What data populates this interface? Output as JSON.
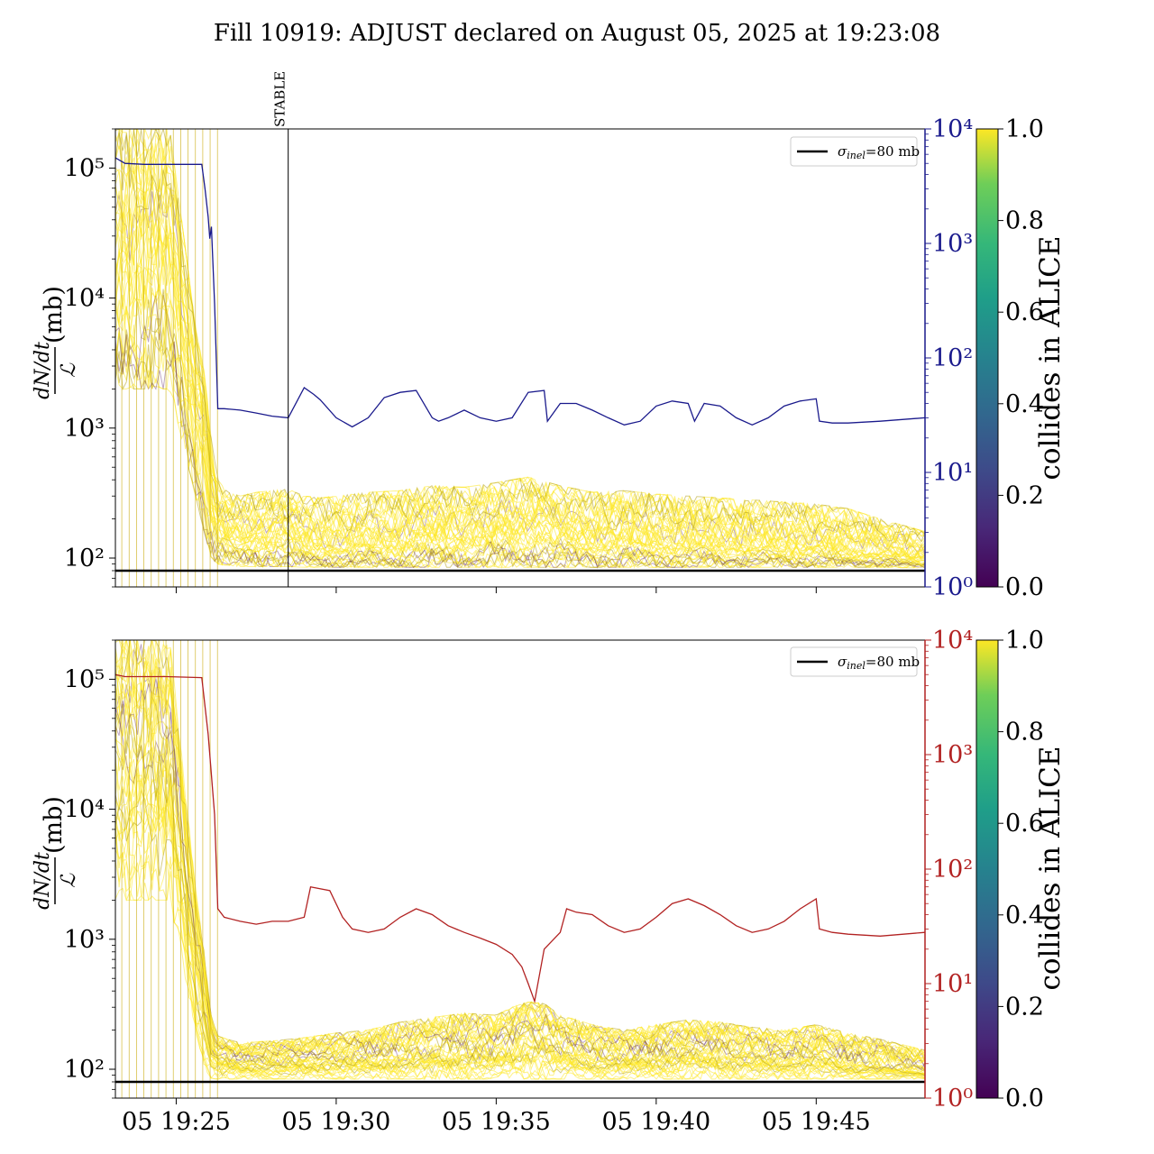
{
  "figure": {
    "title": "Fill 10919: ADJUST declared on August 05, 2025 at 19:23:08",
    "ylabel_left": "dN/dt / ℒ (mb)",
    "ylabel_left_numerator": "dN/dt",
    "ylabel_left_denominator": "ℒ",
    "ylabel_left_unit": "(mb)",
    "colorbar_label": "collides in ALICE",
    "legend_label": "σinel=80 mb",
    "legend_sigma": "σ",
    "legend_sub": "inel",
    "legend_rest": "=80 mb",
    "annotation_stable": "STABLE"
  },
  "colors": {
    "top_right_axis": "#1a1a8c",
    "bottom_right_axis": "#b22222",
    "bundle_yellow": "#fde725",
    "bundle_olive": "#b5a31e",
    "bundle_purple": "#440154",
    "reference_line": "#000000"
  },
  "chart_data": [
    {
      "type": "line",
      "panel": "top",
      "x_ticks": [
        "05 19:25",
        "05 19:30",
        "05 19:35",
        "05 19:40",
        "05 19:45"
      ],
      "x_tick_minutes": [
        25,
        30,
        35,
        40,
        45
      ],
      "x_range_minutes": [
        23.1,
        48.4
      ],
      "y_left": {
        "scale": "log",
        "range": [
          60,
          200000
        ],
        "ticks": [
          100,
          1000,
          10000,
          100000
        ],
        "tick_labels": [
          "10²",
          "10³",
          "10⁴",
          "10⁵"
        ]
      },
      "y_right": {
        "scale": "log",
        "range": [
          1,
          10000
        ],
        "ticks": [
          1,
          10,
          100,
          1000,
          10000
        ],
        "tick_labels": [
          "10⁰",
          "10¹",
          "10²",
          "10³",
          "10⁴"
        ]
      },
      "reference_line_mb": 80,
      "stable_marker_minute": 28.5,
      "bundle_envelope": {
        "minutes": [
          23.1,
          24.0,
          24.8,
          25.6,
          25.9,
          26.1,
          26.3,
          26.6,
          27.0,
          27.5,
          28.0,
          28.5,
          29.0,
          29.5,
          30.0,
          31.0,
          32.0,
          33.0,
          34.0,
          35.0,
          36.0,
          37.0,
          38.0,
          39.0,
          40.0,
          41.0,
          42.0,
          43.0,
          44.0,
          45.0,
          46.0,
          47.0,
          48.4
        ],
        "upper": [
          200000,
          200000,
          200000,
          6000,
          2500,
          800,
          400,
          320,
          300,
          320,
          330,
          340,
          300,
          290,
          300,
          320,
          330,
          360,
          350,
          380,
          420,
          360,
          320,
          330,
          310,
          300,
          290,
          280,
          270,
          260,
          240,
          200,
          160
        ],
        "median": [
          20000,
          20000,
          20000,
          1500,
          700,
          250,
          170,
          150,
          140,
          150,
          150,
          160,
          130,
          120,
          125,
          130,
          135,
          150,
          145,
          160,
          170,
          150,
          135,
          140,
          130,
          130,
          128,
          125,
          122,
          125,
          115,
          110,
          100
        ],
        "lower": [
          2000,
          2000,
          2000,
          300,
          150,
          100,
          90,
          88,
          86,
          86,
          86,
          86,
          85,
          85,
          85,
          85,
          85,
          85,
          85,
          85,
          85,
          85,
          85,
          85,
          85,
          85,
          85,
          85,
          85,
          85,
          85,
          85,
          84
        ]
      },
      "right_series": {
        "name": "",
        "minutes": [
          23.1,
          23.4,
          24.0,
          24.7,
          25.8,
          25.9,
          26.0,
          26.05,
          26.1,
          26.2,
          26.3,
          26.5,
          27.0,
          27.5,
          28.0,
          28.5,
          29.0,
          29.3,
          29.5,
          30.0,
          30.5,
          31.0,
          31.5,
          32.0,
          32.5,
          33.0,
          33.2,
          33.5,
          34.0,
          34.5,
          35.0,
          35.5,
          36.0,
          36.5,
          36.6,
          37.0,
          37.5,
          38.0,
          38.5,
          39.0,
          39.5,
          40.0,
          40.5,
          41.0,
          41.2,
          41.5,
          42.0,
          42.5,
          43.0,
          43.5,
          44.0,
          44.5,
          45.0,
          45.1,
          45.5,
          46.0,
          47.0,
          48.4
        ],
        "values": [
          5600,
          5000,
          4900,
          4900,
          4900,
          3000,
          1700,
          1100,
          1400,
          300,
          36,
          36,
          35,
          33,
          31,
          30,
          55,
          48,
          43,
          30,
          25,
          30,
          45,
          50,
          52,
          30,
          28,
          30,
          35,
          30,
          28,
          30,
          50,
          52,
          28,
          40,
          40,
          35,
          30,
          26,
          28,
          38,
          42,
          40,
          28,
          40,
          38,
          30,
          26,
          30,
          38,
          42,
          44,
          28,
          27,
          27,
          28,
          30
        ]
      }
    },
    {
      "type": "line",
      "panel": "bottom",
      "x_ticks": [
        "05 19:25",
        "05 19:30",
        "05 19:35",
        "05 19:40",
        "05 19:45"
      ],
      "x_tick_minutes": [
        25,
        30,
        35,
        40,
        45
      ],
      "x_range_minutes": [
        23.1,
        48.4
      ],
      "y_left": {
        "scale": "log",
        "range": [
          60,
          200000
        ],
        "ticks": [
          100,
          1000,
          10000,
          100000
        ],
        "tick_labels": [
          "10²",
          "10³",
          "10⁴",
          "10⁵"
        ]
      },
      "y_right": {
        "scale": "log",
        "range": [
          1,
          10000
        ],
        "ticks": [
          1,
          10,
          100,
          1000,
          10000
        ],
        "tick_labels": [
          "10⁰",
          "10¹",
          "10²",
          "10³",
          "10⁴"
        ]
      },
      "reference_line_mb": 80,
      "bundle_envelope": {
        "minutes": [
          23.1,
          24.0,
          24.8,
          25.6,
          25.9,
          26.1,
          26.3,
          26.6,
          27.0,
          28.0,
          29.0,
          30.0,
          31.0,
          32.0,
          33.0,
          34.0,
          35.0,
          35.5,
          36.0,
          36.5,
          37.0,
          37.5,
          38.0,
          39.0,
          40.0,
          41.0,
          42.0,
          43.0,
          44.0,
          45.0,
          46.0,
          47.0,
          48.4
        ],
        "upper": [
          200000,
          200000,
          200000,
          2500,
          700,
          250,
          180,
          170,
          160,
          165,
          175,
          190,
          200,
          230,
          250,
          270,
          260,
          300,
          330,
          320,
          260,
          240,
          220,
          200,
          220,
          240,
          230,
          210,
          200,
          220,
          190,
          170,
          140
        ],
        "median": [
          20000,
          20000,
          20000,
          700,
          300,
          140,
          120,
          115,
          110,
          112,
          115,
          118,
          120,
          125,
          130,
          135,
          130,
          150,
          180,
          160,
          135,
          130,
          125,
          120,
          125,
          135,
          130,
          122,
          118,
          125,
          110,
          105,
          95
        ],
        "lower": [
          2000,
          2000,
          2000,
          200,
          100,
          85,
          84,
          84,
          84,
          84,
          84,
          84,
          84,
          84,
          84,
          84,
          84,
          84,
          84,
          84,
          84,
          84,
          84,
          84,
          84,
          84,
          84,
          84,
          84,
          84,
          84,
          84,
          84
        ]
      },
      "right_series": {
        "name": "",
        "minutes": [
          23.1,
          23.4,
          24.0,
          24.7,
          25.8,
          26.0,
          26.2,
          26.3,
          26.5,
          27.0,
          27.5,
          28.0,
          28.5,
          29.0,
          29.2,
          29.8,
          30.2,
          30.5,
          31.0,
          31.5,
          32.0,
          32.5,
          33.0,
          33.5,
          34.0,
          34.5,
          35.0,
          35.5,
          35.8,
          36.0,
          36.2,
          36.5,
          37.0,
          37.2,
          37.5,
          38.0,
          38.5,
          39.0,
          39.5,
          40.0,
          40.5,
          41.0,
          41.5,
          42.0,
          42.5,
          43.0,
          43.5,
          44.0,
          44.5,
          45.0,
          45.1,
          45.5,
          46.0,
          47.0,
          48.4
        ],
        "values": [
          5000,
          4800,
          4800,
          4800,
          4700,
          1500,
          300,
          45,
          38,
          35,
          33,
          35,
          35,
          38,
          70,
          65,
          38,
          30,
          28,
          30,
          38,
          45,
          40,
          32,
          28,
          25,
          22,
          18,
          14,
          10,
          7,
          20,
          28,
          45,
          42,
          40,
          32,
          28,
          30,
          38,
          50,
          55,
          48,
          40,
          32,
          28,
          30,
          35,
          45,
          55,
          30,
          28,
          27,
          26,
          28
        ]
      }
    }
  ]
}
